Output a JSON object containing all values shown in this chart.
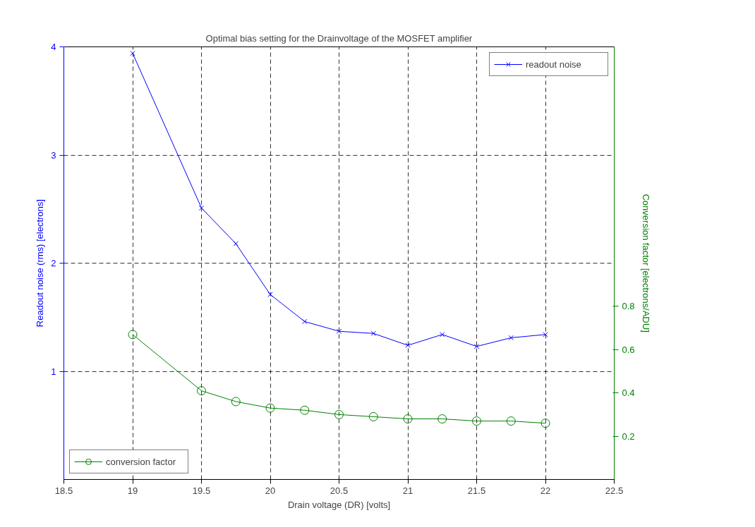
{
  "chart_data": {
    "type": "line",
    "title": "Optimal bias setting for the Drainvoltage of the MOSFET amplifier",
    "xlabel": "Drain voltage (DR) [volts]",
    "ylabel": "Readout noise (rms) [electrons]",
    "y2label": "Conversion factor [electrons/ADU]",
    "x": [
      19,
      19.5,
      19.75,
      20,
      20.25,
      20.5,
      20.75,
      21,
      21.25,
      21.5,
      21.75,
      22
    ],
    "series": [
      {
        "name": "readout noise",
        "color": "#0000ff",
        "marker": "cross",
        "values": [
          3.94,
          2.51,
          2.18,
          1.71,
          1.46,
          1.37,
          1.35,
          1.24,
          1.34,
          1.23,
          1.31,
          1.34
        ]
      },
      {
        "name": "conversion factor",
        "color": "#008000",
        "marker": "circle",
        "axis": "y2",
        "values": [
          0.67,
          0.41,
          0.36,
          0.33,
          0.32,
          0.3,
          0.29,
          0.28,
          0.28,
          0.27,
          0.27,
          0.26
        ]
      }
    ],
    "xlim": [
      18.5,
      22.5
    ],
    "xticks": [
      18.5,
      19,
      19.5,
      20,
      20.5,
      21,
      21.5,
      22,
      22.5
    ],
    "ylim": [
      0,
      4
    ],
    "yticks": [
      1,
      2,
      3,
      4
    ],
    "y2lim": [
      0,
      2
    ],
    "y2ticks": [
      0.2,
      0.4,
      0.6,
      0.8
    ],
    "grid": true,
    "legend": "top right",
    "line_style": "solid"
  }
}
